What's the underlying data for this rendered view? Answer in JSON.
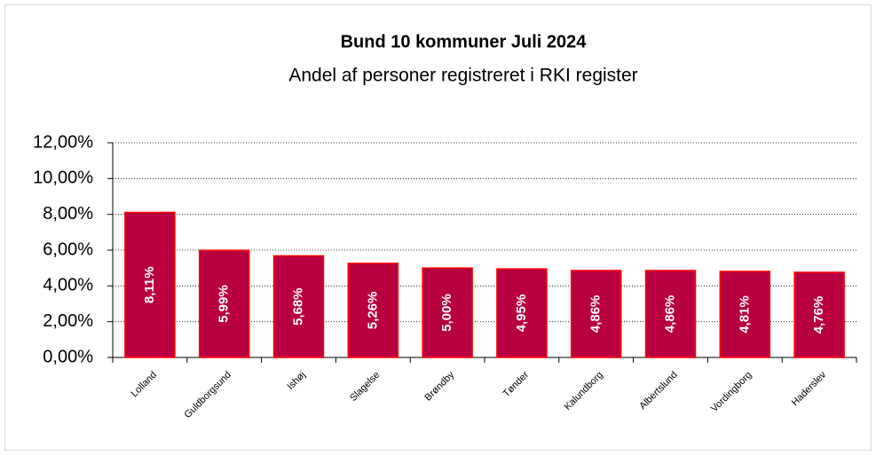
{
  "chart_data": {
    "type": "bar",
    "title": "Bund 10 kommuner Juli 2024",
    "subtitle": "Andel af personer registreret i RKI register",
    "categories": [
      "Lolland",
      "Guldborgsund",
      "Ishøj",
      "Slagelse",
      "Brøndby",
      "Tønder",
      "Kalundborg",
      "Albertslund",
      "Vordingborg",
      "Haderslev"
    ],
    "values": [
      8.11,
      5.99,
      5.68,
      5.26,
      5.0,
      4.95,
      4.86,
      4.86,
      4.81,
      4.76
    ],
    "value_labels": [
      "8,11%",
      "5,99%",
      "5,68%",
      "5,26%",
      "5,00%",
      "4,95%",
      "4,86%",
      "4,86%",
      "4,81%",
      "4,76%"
    ],
    "color": "#b80040",
    "edge_color": "#ff0000",
    "ylim": [
      0,
      12
    ],
    "yticks": [
      {
        "value": 0,
        "label": "0,00%"
      },
      {
        "value": 2,
        "label": "2,00%"
      },
      {
        "value": 4,
        "label": "4,00%"
      },
      {
        "value": 6,
        "label": "6,00%"
      },
      {
        "value": 8,
        "label": "8,00%"
      },
      {
        "value": 10,
        "label": "10,00%"
      },
      {
        "value": 12,
        "label": "12,00%"
      }
    ],
    "grid": true
  }
}
